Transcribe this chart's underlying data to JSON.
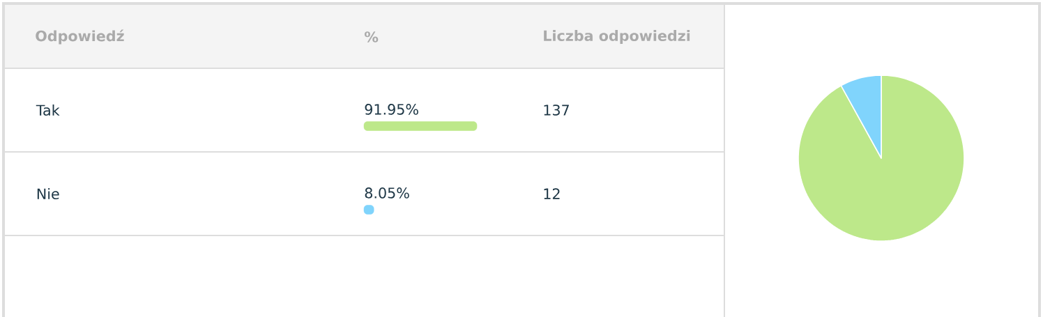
{
  "chart_data": [
    {
      "type": "bar",
      "orientation": "horizontal",
      "ylabel": "Odpowiedź",
      "xlabel": "%",
      "categories": [
        "Tak",
        "Nie"
      ],
      "values": [
        91.95,
        8.05
      ],
      "colors": [
        "#bde88a",
        "#80d4fc"
      ],
      "value_labels": [
        "91.95%",
        "8.05%"
      ],
      "tick_labels": "y"
    },
    {
      "type": "other",
      "title": "Liczba odpowiedzi",
      "categories": [
        null,
        null
      ],
      "values": [
        137,
        12
      ],
      "data_labels": true
    },
    {
      "type": "pie",
      "categories": [
        null,
        null
      ],
      "values": [
        91.95,
        8.05
      ],
      "colors": [
        "#bde88a",
        "#80d4fc"
      ]
    }
  ]
}
